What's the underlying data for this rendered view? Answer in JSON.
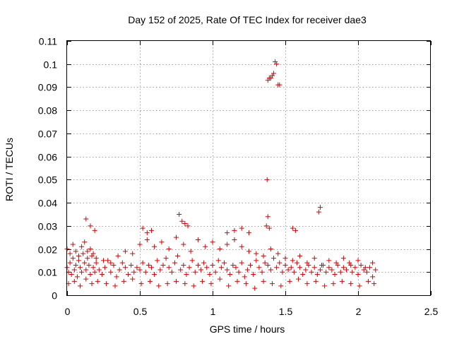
{
  "chart_data": {
    "type": "scatter",
    "title": "Day 152 of 2025, Rate Of TEC Index for receiver dae3",
    "xlabel": "GPS time / hours",
    "ylabel": "ROTI / TECUs",
    "xlim": [
      0,
      2.5
    ],
    "ylim": [
      0,
      0.11
    ],
    "xticks": [
      "0",
      "0.5",
      "1",
      "1.5",
      "2",
      "2.5"
    ],
    "yticks": [
      "0",
      "0.01",
      "0.02",
      "0.03",
      "0.04",
      "0.05",
      "0.06",
      "0.07",
      "0.08",
      "0.09",
      "0.1",
      "0.11"
    ],
    "grid": true,
    "marker": "+",
    "color": "#e00000",
    "series": [
      {
        "name": "",
        "x": [
          0.0,
          0.01,
          0.02,
          0.03,
          0.04,
          0.05,
          0.06,
          0.07,
          0.08,
          0.09,
          0.1,
          0.11,
          0.12,
          0.13,
          0.14,
          0.15,
          0.16,
          0.17,
          0.18,
          0.19,
          0.2,
          0.22,
          0.24,
          0.26,
          0.28,
          0.3,
          0.32,
          0.34,
          0.36,
          0.38,
          0.4,
          0.42,
          0.44,
          0.46,
          0.48,
          0.5,
          0.52,
          0.54,
          0.56,
          0.58,
          0.6,
          0.62,
          0.64,
          0.66,
          0.68,
          0.7,
          0.72,
          0.74,
          0.76,
          0.78,
          0.8,
          0.82,
          0.84,
          0.86,
          0.88,
          0.9,
          0.92,
          0.94,
          0.96,
          0.98,
          1.0,
          1.02,
          1.04,
          1.06,
          1.08,
          1.1,
          1.12,
          1.14,
          1.16,
          1.18,
          1.2,
          1.22,
          1.24,
          1.26,
          1.28,
          1.3,
          1.32,
          1.34,
          1.36,
          1.38,
          1.4,
          1.42,
          1.44,
          1.46,
          1.48,
          1.5,
          1.52,
          1.54,
          1.56,
          1.58,
          1.6,
          1.62,
          1.64,
          1.66,
          1.68,
          1.7,
          1.72,
          1.74,
          1.76,
          1.78,
          1.8,
          1.82,
          1.84,
          1.86,
          1.88,
          1.9,
          1.92,
          1.94,
          1.96,
          1.98,
          2.0,
          2.02,
          2.04,
          2.06,
          2.08,
          2.1,
          2.12,
          0.0,
          0.02,
          0.04,
          0.06,
          0.08,
          0.1,
          0.12,
          0.14,
          0.16,
          0.18,
          0.2,
          0.25,
          0.3,
          0.35,
          0.4,
          0.45,
          0.5,
          0.55,
          0.6,
          0.65,
          0.7,
          0.75,
          0.8,
          0.85,
          0.9,
          0.95,
          1.0,
          1.05,
          1.1,
          1.15,
          1.2,
          1.25,
          1.3,
          1.35,
          1.4,
          1.45,
          1.5,
          1.55,
          1.6,
          1.65,
          1.7,
          1.75,
          1.8,
          1.85,
          1.9,
          1.95,
          2.0,
          2.05,
          2.1,
          0.01,
          0.05,
          0.09,
          0.13,
          0.17,
          0.21,
          0.27,
          0.33,
          0.39,
          0.45,
          0.51,
          0.57,
          0.63,
          0.69,
          0.75,
          0.81,
          0.87,
          0.93,
          0.99,
          1.05,
          1.11,
          1.17,
          1.23,
          1.29,
          1.35,
          1.41,
          1.47,
          1.53,
          1.59,
          1.65,
          1.71,
          1.77,
          1.83,
          1.89,
          1.95,
          2.01,
          2.07,
          2.11,
          0.13,
          0.16,
          0.19,
          0.52,
          0.55,
          0.58,
          0.77,
          0.79,
          0.81,
          0.83,
          1.1,
          1.15,
          1.2,
          1.25,
          1.37,
          1.38,
          1.39,
          1.55,
          1.57,
          1.73,
          1.74,
          1.38,
          1.39,
          1.4,
          1.41,
          1.42,
          1.43,
          1.44,
          1.45,
          1.46,
          1.375
        ],
        "y": [
          0.012,
          0.01,
          0.014,
          0.009,
          0.016,
          0.011,
          0.013,
          0.008,
          0.015,
          0.012,
          0.01,
          0.018,
          0.014,
          0.011,
          0.016,
          0.013,
          0.009,
          0.017,
          0.012,
          0.01,
          0.014,
          0.011,
          0.009,
          0.012,
          0.015,
          0.01,
          0.013,
          0.008,
          0.011,
          0.014,
          0.012,
          0.009,
          0.013,
          0.01,
          0.012,
          0.011,
          0.014,
          0.01,
          0.013,
          0.012,
          0.009,
          0.015,
          0.011,
          0.013,
          0.016,
          0.012,
          0.01,
          0.014,
          0.017,
          0.011,
          0.013,
          0.009,
          0.012,
          0.015,
          0.01,
          0.013,
          0.011,
          0.014,
          0.012,
          0.009,
          0.013,
          0.01,
          0.015,
          0.012,
          0.014,
          0.011,
          0.009,
          0.013,
          0.012,
          0.01,
          0.014,
          0.008,
          0.011,
          0.013,
          0.009,
          0.015,
          0.012,
          0.01,
          0.014,
          0.013,
          0.011,
          0.016,
          0.012,
          0.014,
          0.01,
          0.013,
          0.011,
          0.012,
          0.01,
          0.014,
          0.012,
          0.009,
          0.011,
          0.013,
          0.01,
          0.012,
          0.009,
          0.011,
          0.013,
          0.01,
          0.012,
          0.011,
          0.009,
          0.013,
          0.01,
          0.012,
          0.011,
          0.014,
          0.01,
          0.012,
          0.009,
          0.013,
          0.011,
          0.01,
          0.012,
          0.008,
          0.011,
          0.02,
          0.018,
          0.022,
          0.019,
          0.017,
          0.021,
          0.023,
          0.019,
          0.02,
          0.018,
          0.016,
          0.015,
          0.014,
          0.017,
          0.019,
          0.018,
          0.022,
          0.024,
          0.021,
          0.023,
          0.02,
          0.025,
          0.022,
          0.019,
          0.024,
          0.021,
          0.023,
          0.02,
          0.022,
          0.024,
          0.021,
          0.019,
          0.018,
          0.017,
          0.02,
          0.018,
          0.016,
          0.015,
          0.017,
          0.014,
          0.016,
          0.013,
          0.015,
          0.014,
          0.016,
          0.013,
          0.015,
          0.012,
          0.014,
          0.005,
          0.006,
          0.004,
          0.007,
          0.005,
          0.006,
          0.005,
          0.004,
          0.006,
          0.007,
          0.005,
          0.006,
          0.004,
          0.005,
          0.006,
          0.005,
          0.004,
          0.006,
          0.005,
          0.007,
          0.004,
          0.006,
          0.005,
          0.003,
          0.006,
          0.005,
          0.004,
          0.006,
          0.007,
          0.005,
          0.006,
          0.004,
          0.005,
          0.006,
          0.005,
          0.004,
          0.006,
          0.005,
          0.033,
          0.03,
          0.028,
          0.029,
          0.027,
          0.028,
          0.035,
          0.032,
          0.031,
          0.03,
          0.027,
          0.028,
          0.029,
          0.027,
          0.03,
          0.034,
          0.029,
          0.029,
          0.028,
          0.036,
          0.038,
          0.093,
          0.094,
          0.094,
          0.095,
          0.096,
          0.101,
          0.1,
          0.091,
          0.091,
          0.05
        ]
      }
    ]
  }
}
